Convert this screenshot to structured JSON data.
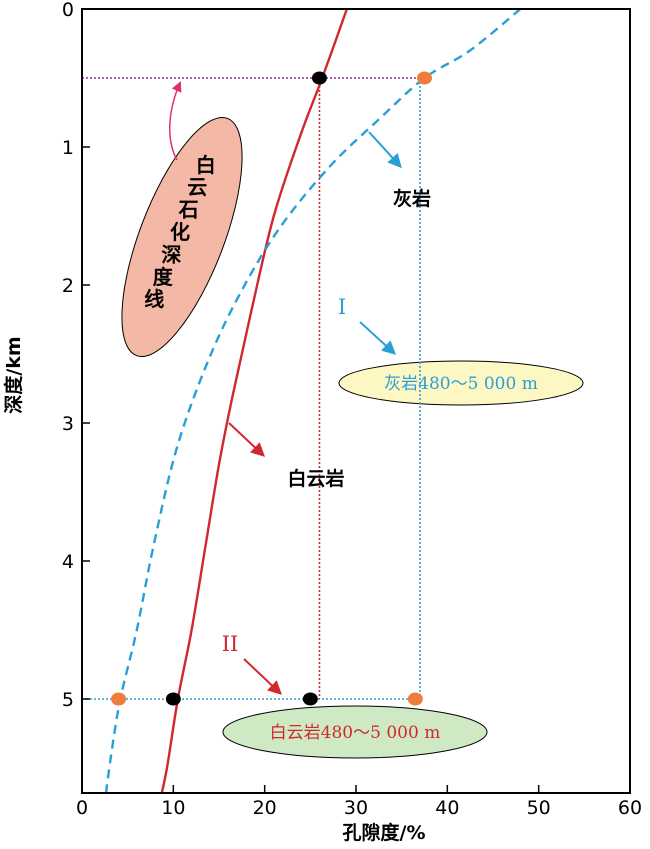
{
  "chart_data": {
    "type": "line",
    "xlabel": "孔隙度/%",
    "ylabel": "深度/km",
    "xlim": [
      0,
      60
    ],
    "ylim": [
      5.75,
      0
    ],
    "x_ticks": [
      "0",
      "10",
      "20",
      "30",
      "40",
      "50",
      "60"
    ],
    "y_ticks": [
      "0",
      "1",
      "2",
      "3",
      "4",
      "5"
    ],
    "grid": false,
    "series": [
      {
        "name": "白云岩",
        "color": "#d0282e",
        "style": "solid",
        "points": [
          [
            29,
            0
          ],
          [
            26.3,
            0.5
          ],
          [
            24,
            0.9
          ],
          [
            21,
            1.5
          ],
          [
            18.5,
            2.2
          ],
          [
            16.5,
            2.8
          ],
          [
            15,
            3.3
          ],
          [
            13.5,
            3.9
          ],
          [
            12,
            4.5
          ],
          [
            10.5,
            5.0
          ],
          [
            9.3,
            5.5
          ],
          [
            8.5,
            5.75
          ]
        ]
      },
      {
        "name": "灰岩",
        "color": "#2a9fd6",
        "style": "dashed",
        "points": [
          [
            48,
            0
          ],
          [
            42.5,
            0.3
          ],
          [
            37.5,
            0.5
          ],
          [
            32.5,
            0.8
          ],
          [
            27,
            1.15
          ],
          [
            21.5,
            1.6
          ],
          [
            17,
            2.1
          ],
          [
            13.5,
            2.6
          ],
          [
            10.3,
            3.2
          ],
          [
            7.8,
            3.9
          ],
          [
            6,
            4.5
          ],
          [
            4.2,
            5.0
          ],
          [
            3.2,
            5.4
          ],
          [
            2.5,
            5.75
          ]
        ]
      }
    ],
    "reference_lines": [
      {
        "depth": 0.5,
        "x_from": 0,
        "x_to": 37.5,
        "color": "#a020a0",
        "style": "dotted"
      },
      {
        "depth": 5.0,
        "x_from": 0,
        "x_to": 36.5,
        "color": "#2a9fd6",
        "style": "dotted"
      },
      {
        "x": 26,
        "depth_from": 0.5,
        "depth_to": 5.0,
        "color": "#d0282e",
        "style": "dotted"
      },
      {
        "x": 37,
        "depth_from": 0.5,
        "depth_to": 5.0,
        "color": "#2a9fd6",
        "style": "dotted"
      }
    ],
    "markers": [
      {
        "x": 26,
        "depth": 0.5,
        "color": "#000000"
      },
      {
        "x": 37.5,
        "depth": 0.5,
        "color": "#f07c3c"
      },
      {
        "x": 4,
        "depth": 5.0,
        "color": "#f07c3c"
      },
      {
        "x": 10,
        "depth": 5.0,
        "color": "#000000"
      },
      {
        "x": 25,
        "depth": 5.0,
        "color": "#000000"
      },
      {
        "x": 36.5,
        "depth": 5.0,
        "color": "#f07c3c"
      }
    ],
    "annotations": {
      "dolomitization_label": "白云石化深度线",
      "limestone_label": "灰岩",
      "dolomite_label": "白云岩",
      "roman_I": "I",
      "roman_II": "II",
      "limestone_range": "灰岩480～5 000 m",
      "dolomite_range": "白云岩480～5 000 m"
    },
    "colors": {
      "dolomite": "#d0282e",
      "limestone": "#2a9fd6",
      "depth_line": "#a020a0",
      "orange_marker": "#f07c3c",
      "pink_ellipse": "#f4b8a6",
      "yellow_ellipse": "#fdf7c4",
      "green_ellipse": "#cfe9c5"
    }
  }
}
